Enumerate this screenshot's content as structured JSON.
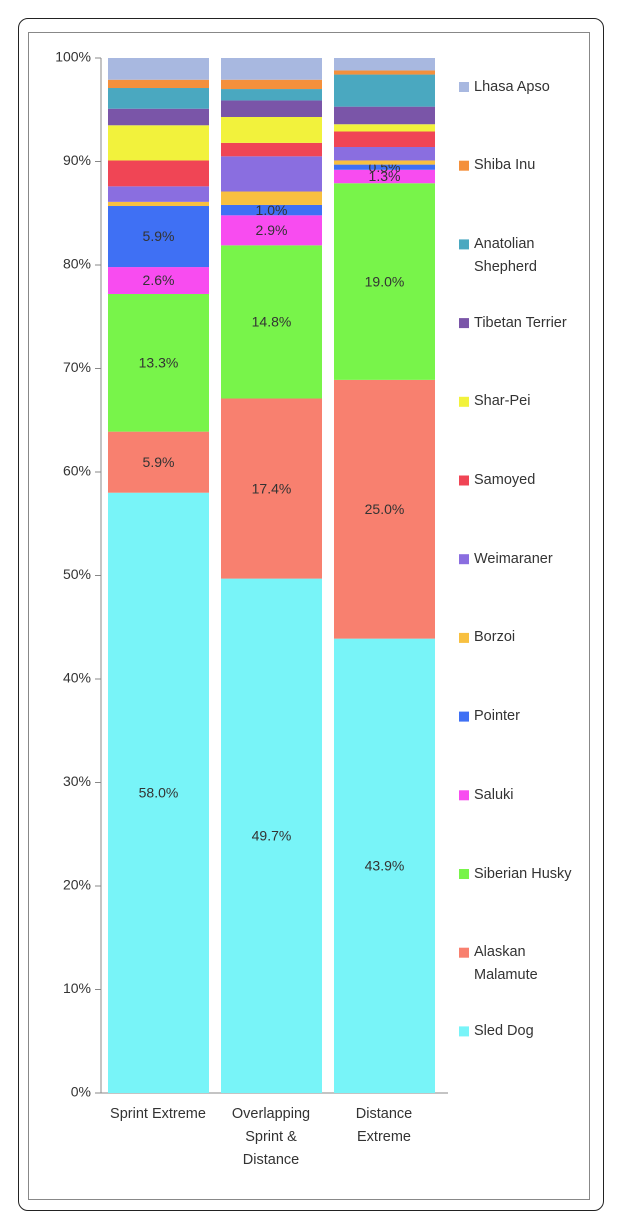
{
  "chart_data": {
    "type": "stacked_bar",
    "categories": [
      "Sprint Extreme",
      "Overlapping Sprint & Distance",
      "Distance Extreme"
    ],
    "ylim": [
      0,
      100
    ],
    "yticks": [
      {
        "value": 0,
        "label": "0%"
      },
      {
        "value": 10,
        "label": "10%"
      },
      {
        "value": 20,
        "label": "20%"
      },
      {
        "value": 30,
        "label": "30%"
      },
      {
        "value": 40,
        "label": "40%"
      },
      {
        "value": 50,
        "label": "50%"
      },
      {
        "value": 60,
        "label": "60%"
      },
      {
        "value": 70,
        "label": "70%"
      },
      {
        "value": 80,
        "label": "80%"
      },
      {
        "value": 90,
        "label": "90%"
      },
      {
        "value": 100,
        "label": "100%"
      }
    ],
    "legend": "right",
    "series": [
      {
        "name": "Sled Dog",
        "color": "#78f4f8",
        "values": [
          58.0,
          49.7,
          43.9
        ],
        "value_labels": [
          "58.0%",
          "49.7%",
          "43.9%"
        ]
      },
      {
        "name": "Alaskan Malamute",
        "color": "#f8806f",
        "values": [
          5.9,
          17.4,
          25.0
        ],
        "value_labels": [
          "5.9%",
          "17.4%",
          "25.0%"
        ]
      },
      {
        "name": "Siberian Husky",
        "color": "#78f44a",
        "values": [
          13.3,
          14.8,
          19.0
        ],
        "value_labels": [
          "13.3%",
          "14.8%",
          "19.0%"
        ]
      },
      {
        "name": "Saluki",
        "color": "#f84cf0",
        "values": [
          2.6,
          2.9,
          1.3
        ],
        "value_labels": [
          "2.6%",
          "2.9%",
          "1.3%"
        ]
      },
      {
        "name": "Pointer",
        "color": "#3f70f4",
        "values": [
          5.9,
          1.0,
          0.5
        ],
        "value_labels": [
          "5.9%",
          "1.0%",
          "0.5%"
        ]
      },
      {
        "name": "Borzoi",
        "color": "#f8c040",
        "values": [
          0.4,
          1.3,
          0.4
        ]
      },
      {
        "name": "Weimaraner",
        "color": "#8a6ee0",
        "values": [
          1.5,
          3.4,
          1.3
        ]
      },
      {
        "name": "Samoyed",
        "color": "#f04555",
        "values": [
          2.5,
          1.3,
          1.5
        ]
      },
      {
        "name": "Shar-Pei",
        "color": "#f2f23c",
        "values": [
          3.4,
          2.5,
          0.7
        ]
      },
      {
        "name": "Tibetan Terrier",
        "color": "#7a55a8",
        "values": [
          1.6,
          1.6,
          1.7
        ]
      },
      {
        "name": "Anatolian Shepherd",
        "color": "#4aa8c0",
        "values": [
          2.0,
          1.1,
          3.1
        ]
      },
      {
        "name": "Shiba Inu",
        "color": "#f4903c",
        "values": [
          0.8,
          0.9,
          0.4
        ]
      },
      {
        "name": "Lhasa Apso",
        "color": "#a8b8e0",
        "values": [
          2.1,
          2.1,
          1.2
        ]
      }
    ]
  }
}
